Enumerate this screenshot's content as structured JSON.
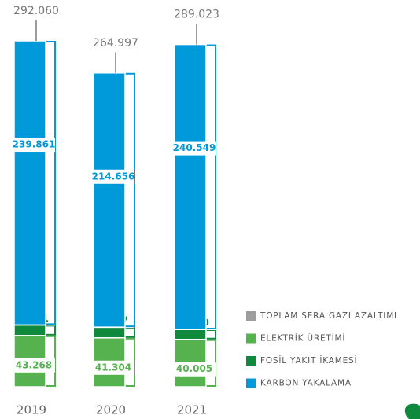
{
  "chart_data": {
    "type": "stacked_bar",
    "categories": [
      "2019",
      "2020",
      "2021"
    ],
    "series": [
      {
        "name": "ELEKTRİK ÜRETİMİ",
        "color": "#56b14f",
        "values": [
          43268,
          41304,
          40005
        ],
        "value_labels": [
          "43.268",
          "41.304",
          "40.005"
        ]
      },
      {
        "name": "FOSİL YAKIT İKAMESİ",
        "color": "#0f8a3c",
        "values": [
          8931,
          9037,
          8469
        ],
        "value_labels": [
          "8.931",
          "9.037",
          "8.469"
        ]
      },
      {
        "name": "KARBON YAKALAMA",
        "color": "#0099d9",
        "values": [
          239861,
          214656,
          240549
        ],
        "value_labels": [
          "239.861",
          "214.656",
          "240.549"
        ]
      }
    ],
    "total": {
      "name": "TOPLAM SERA GAZI AZALTIMI",
      "color": "#9d9d9d",
      "values": [
        292060,
        264997,
        289023
      ],
      "value_labels": [
        "292.060",
        "264.997",
        "289.023"
      ]
    }
  }
}
